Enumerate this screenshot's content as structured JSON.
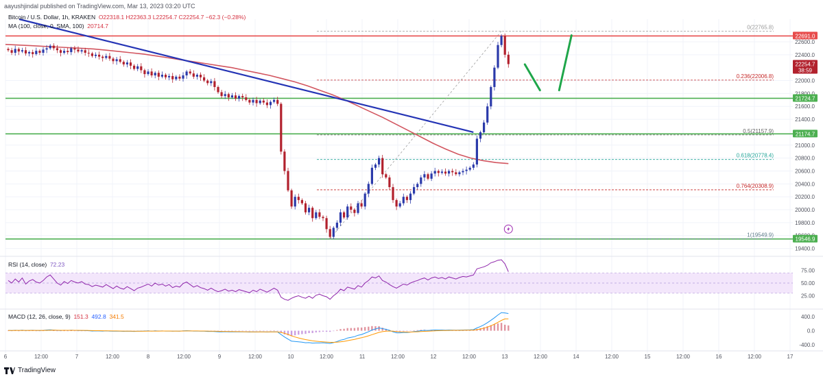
{
  "header": {
    "publisher_line": "aayushjindal published on TradingView.com, Mar 13, 2023 03:20 UTC"
  },
  "price_info": {
    "symbol": "Bitcoin / U.S. Dollar, 1h, KRAKEN",
    "ohlc": "O22318.1  H22363.3  L22254.7  C22254.7  −62.3 (−0.28%)"
  },
  "ma_info": {
    "label": "MA (100, close, 0, SMA, 100)",
    "value": "20714.7"
  },
  "rsi_info": {
    "label": "RSI (14, close)",
    "value": "72.23"
  },
  "macd_info": {
    "label": "MACD (12, 26, close, 9)",
    "hist": "151.3",
    "macd": "492.8",
    "signal": "341.5"
  },
  "footer": {
    "brand": "TradingView"
  },
  "colors": {
    "up": "#2b3aaa",
    "down": "#b2212d",
    "ma": "#d2555f",
    "trendline": "#2434b5",
    "resistance": "#e74c4c",
    "support": "#4caf50",
    "fib": "#9a9a9a",
    "projection": "#1fa64a",
    "rsi_band": "#f3e6fb",
    "rsi_line": "#8e24aa",
    "macd_line": "#2196f3",
    "signal_line": "#ff9800"
  },
  "chart_data": {
    "type": "candlestick",
    "pair": "BTC/USD",
    "timeframe": "1h",
    "x_tick_labels": [
      "6",
      "12:00",
      "7",
      "12:00",
      "8",
      "12:00",
      "9",
      "12:00",
      "10",
      "12:00",
      "11",
      "12:00",
      "12",
      "12:00",
      "13",
      "12:00",
      "14",
      "12:00",
      "15",
      "12:00",
      "16",
      "12:00",
      "17"
    ],
    "y_tick_labels": [
      "22600.0",
      "22400.0",
      "22000.0",
      "21800.0",
      "21600.0",
      "21400.0",
      "21000.0",
      "20800.0",
      "20600.0",
      "20400.0",
      "20200.0",
      "20000.0",
      "19800.0",
      "19600.0",
      "19400.0"
    ],
    "price_tags": [
      {
        "label": "22691.0",
        "value": 22691.0,
        "color": "#e74c4c"
      },
      {
        "label": "22254.7",
        "value": 22254.7,
        "color": "#b2212d",
        "sub": "38:59"
      },
      {
        "label": "21724.7",
        "value": 21724.7,
        "color": "#4caf50"
      },
      {
        "label": "21174.7",
        "value": 21174.7,
        "color": "#4caf50"
      },
      {
        "label": "19546.9",
        "value": 19546.9,
        "color": "#4caf50"
      }
    ],
    "fib_levels": [
      {
        "label": "0(22765.8)",
        "value": 22765.8,
        "color": "#9a9a9a"
      },
      {
        "label": "0.236(22006.8)",
        "value": 22006.8,
        "color": "#c62828"
      },
      {
        "label": "0.5(21157.9)",
        "value": 21157.9,
        "color": "#616161"
      },
      {
        "label": "0.618(20778.4)",
        "value": 20778.4,
        "color": "#26a69a"
      },
      {
        "label": "0.764(20308.9)",
        "value": 20308.9,
        "color": "#c62828"
      },
      {
        "label": "1(19549.9)",
        "value": 19549.9,
        "color": "#607d8b"
      }
    ],
    "horizontal_lines": [
      {
        "name": "resistance",
        "value": 22691.0
      },
      {
        "name": "support-1",
        "value": 21724.7
      },
      {
        "name": "support-2",
        "value": 21174.7
      },
      {
        "name": "support-3",
        "value": 19546.9
      }
    ],
    "trendline": {
      "from_price": 22950,
      "to_price": 21200
    },
    "rsi_ticks": [
      "75.00",
      "50.00",
      "25.00"
    ],
    "rsi_band": [
      30,
      70
    ],
    "macd_ticks": [
      "400.0",
      "0.0",
      "-400.0"
    ],
    "closes": [
      22470,
      22430,
      22490,
      22450,
      22470,
      22420,
      22440,
      22410,
      22460,
      22430,
      22480,
      22500,
      22540,
      22500,
      22470,
      22430,
      22460,
      22440,
      22500,
      22480,
      22450,
      22470,
      22430,
      22420,
      22380,
      22400,
      22370,
      22350,
      22380,
      22340,
      22300,
      22330,
      22290,
      22250,
      22280,
      22230,
      22180,
      22220,
      22160,
      22100,
      22140,
      22080,
      22120,
      22060,
      22090,
      22050,
      22070,
      22020,
      22060,
      22030,
      22080,
      22140,
      22110,
      22060,
      22090,
      22050,
      22000,
      21960,
      21990,
      21900,
      21820,
      21760,
      21790,
      21740,
      21770,
      21720,
      21760,
      21740,
      21700,
      21660,
      21700,
      21650,
      21690,
      21660,
      21620,
      21670,
      21700,
      21640,
      20900,
      20600,
      20300,
      20050,
      20200,
      20150,
      20100,
      19960,
      20030,
      19870,
      19960,
      19890,
      19870,
      19700,
      19580,
      19720,
      19800,
      19960,
      19880,
      20050,
      20000,
      19950,
      20100,
      20050,
      20250,
      20400,
      20650,
      20700,
      20800,
      20550,
      20500,
      20350,
      20150,
      20050,
      20100,
      20200,
      20150,
      20250,
      20350,
      20400,
      20500,
      20550,
      20480,
      20560,
      20600,
      20570,
      20590,
      20560,
      20600,
      20580,
      20550,
      20580,
      20600,
      20620,
      20650,
      20700,
      21100,
      21200,
      21350,
      21600,
      21900,
      22200,
      22550,
      22691,
      22400,
      22254.7
    ],
    "rsi": [
      55,
      50,
      58,
      52,
      60,
      48,
      54,
      57,
      52,
      50,
      55,
      62,
      66,
      58,
      50,
      46,
      53,
      49,
      55,
      52,
      50,
      53,
      48,
      47,
      43,
      46,
      44,
      42,
      47,
      43,
      39,
      44,
      40,
      38,
      43,
      39,
      35,
      40,
      42,
      45,
      48,
      44,
      50,
      46,
      48,
      44,
      47,
      41,
      44,
      42,
      49,
      52,
      47,
      42,
      45,
      41,
      39,
      36,
      40,
      36,
      33,
      35,
      38,
      34,
      36,
      33,
      37,
      35,
      33,
      31,
      36,
      33,
      38,
      35,
      32,
      36,
      40,
      36,
      22,
      18,
      16,
      20,
      23,
      25,
      22,
      20,
      24,
      20,
      26,
      28,
      25,
      23,
      18,
      25,
      30,
      38,
      35,
      42,
      40,
      38,
      45,
      42,
      50,
      55,
      62,
      60,
      64,
      55,
      52,
      47,
      43,
      40,
      44,
      48,
      46,
      50,
      53,
      55,
      58,
      60,
      56,
      60,
      62,
      59,
      61,
      58,
      62,
      60,
      58,
      61,
      63,
      62,
      64,
      66,
      78,
      80,
      82,
      85,
      90,
      92,
      95,
      96,
      88,
      72.23
    ],
    "macd": [
      10,
      5,
      12,
      8,
      15,
      6,
      10,
      12,
      8,
      5,
      10,
      20,
      25,
      18,
      10,
      5,
      12,
      8,
      14,
      10,
      5,
      8,
      2,
      0,
      -8,
      -4,
      -6,
      -10,
      -5,
      -10,
      -15,
      -10,
      -14,
      -18,
      -12,
      -16,
      -20,
      -15,
      -12,
      -8,
      -5,
      -10,
      -4,
      -8,
      -6,
      -10,
      -8,
      -12,
      -10,
      -12,
      -5,
      0,
      -5,
      -10,
      -8,
      -12,
      -15,
      -20,
      -18,
      -24,
      -30,
      -32,
      -28,
      -33,
      -30,
      -34,
      -30,
      -32,
      -35,
      -38,
      -33,
      -36,
      -32,
      -34,
      -38,
      -34,
      -30,
      -35,
      -110,
      -180,
      -240,
      -300,
      -310,
      -320,
      -330,
      -345,
      -340,
      -355,
      -350,
      -350,
      -345,
      -355,
      -365,
      -340,
      -310,
      -270,
      -250,
      -210,
      -190,
      -170,
      -130,
      -110,
      -70,
      -30,
      20,
      50,
      80,
      60,
      40,
      10,
      -30,
      -60,
      -60,
      -50,
      -50,
      -40,
      -25,
      -15,
      0,
      10,
      5,
      15,
      20,
      18,
      20,
      15,
      20,
      18,
      15,
      18,
      20,
      22,
      25,
      30,
      80,
      120,
      170,
      230,
      300,
      370,
      450,
      520,
      510,
      492.8
    ],
    "signal": [
      8,
      7,
      8,
      8,
      9,
      8,
      8,
      9,
      9,
      8,
      8,
      10,
      13,
      14,
      13,
      11,
      11,
      10,
      11,
      11,
      10,
      9,
      8,
      6,
      3,
      1,
      0,
      -2,
      -3,
      -4,
      -6,
      -7,
      -8,
      -10,
      -10,
      -11,
      -13,
      -13,
      -13,
      -12,
      -11,
      -11,
      -10,
      -10,
      -9,
      -9,
      -9,
      -10,
      -10,
      -10,
      -9,
      -7,
      -7,
      -7,
      -7,
      -8,
      -9,
      -11,
      -12,
      -14,
      -17,
      -20,
      -21,
      -23,
      -25,
      -26,
      -27,
      -28,
      -30,
      -31,
      -32,
      -32,
      -32,
      -33,
      -34,
      -34,
      -33,
      -33,
      -48,
      -75,
      -108,
      -146,
      -179,
      -207,
      -232,
      -255,
      -272,
      -289,
      -301,
      -311,
      -318,
      -325,
      -333,
      -334,
      -330,
      -318,
      -305,
      -286,
      -267,
      -248,
      -224,
      -201,
      -175,
      -146,
      -113,
      -80,
      -48,
      -26,
      -13,
      -8,
      -12,
      -22,
      -30,
      -34,
      -37,
      -38,
      -35,
      -31,
      -25,
      -18,
      -13,
      -8,
      -3,
      0,
      4,
      6,
      8,
      10,
      10,
      11,
      13,
      14,
      16,
      19,
      31,
      49,
      73,
      104,
      143,
      188,
      240,
      296,
      339,
      341.5
    ],
    "ma_path": [
      22560,
      22550,
      22540,
      22530,
      22520,
      22510,
      22500,
      22490,
      22470,
      22450,
      22430,
      22410,
      22380,
      22350,
      22320,
      22290,
      22260,
      22230,
      22200,
      22160,
      22120,
      22080,
      22030,
      21980,
      21920,
      21850,
      21780,
      21700,
      21610,
      21520,
      21430,
      21330,
      21230,
      21130,
      21030,
      20940,
      20860,
      20800,
      20760,
      20730,
      20714.7
    ],
    "rsi_scale": {
      "ylim": [
        0,
        100
      ]
    },
    "macd_scale": {
      "ylim": [
        -500,
        600
      ]
    },
    "price_scale": {
      "ylim": [
        19300,
        22950
      ]
    },
    "price_axis_ticks": [
      22600,
      22400,
      22000,
      21800,
      21600,
      21400,
      21000,
      20800,
      20600,
      20400,
      20200,
      20000,
      19800,
      19600,
      19400
    ],
    "projection": [
      {
        "from_price": 22250,
        "to_price": 21850
      },
      {
        "from_price": 21850,
        "to_price": 22700
      }
    ],
    "annotations": [
      "lightning-badge"
    ]
  }
}
